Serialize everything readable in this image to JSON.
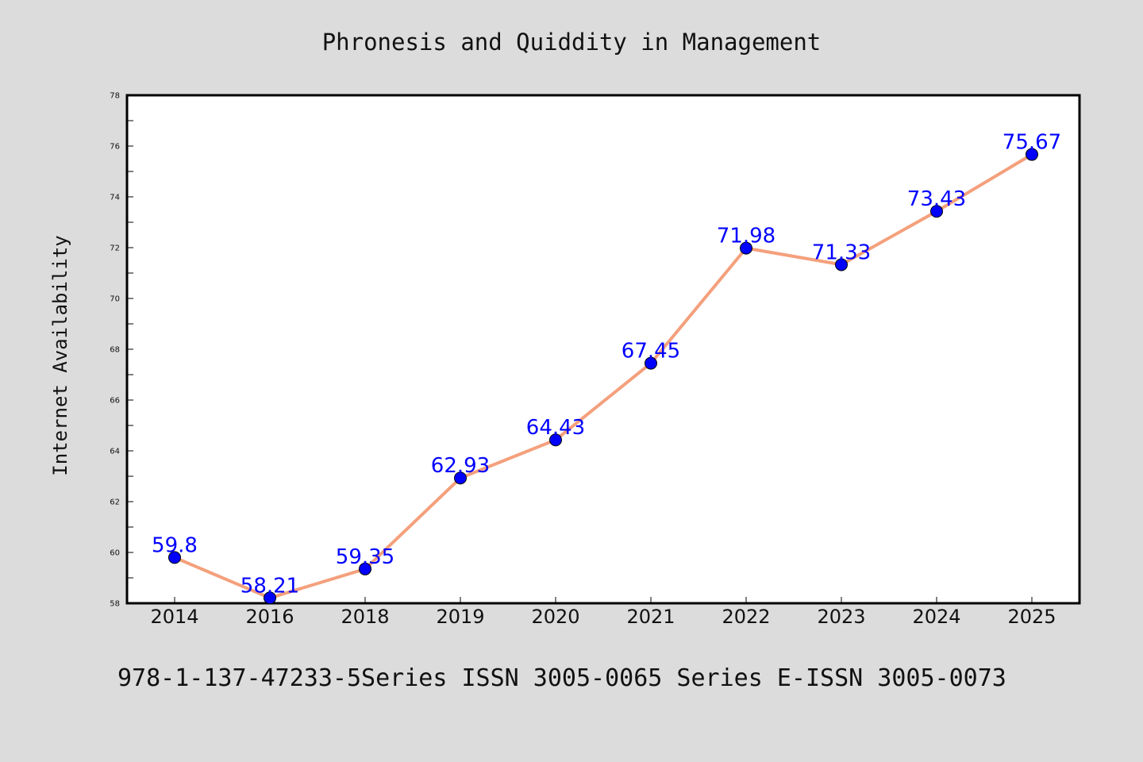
{
  "chart_data": {
    "type": "line",
    "title": "Phronesis and Quiddity in Management",
    "xlabel": "",
    "ylabel": "Internet Availability",
    "categories": [
      "2014",
      "2016",
      "2018",
      "2019",
      "2020",
      "2021",
      "2022",
      "2023",
      "2024",
      "2025"
    ],
    "values": [
      59.8,
      58.21,
      59.35,
      62.93,
      64.43,
      67.45,
      71.98,
      71.33,
      73.43,
      75.67
    ],
    "data_labels": [
      "59.8",
      "58.21",
      "59.35",
      "62.93",
      "64.43",
      "67.45",
      "71.98",
      "71.33",
      "73.43",
      "75.67"
    ],
    "ylim": [
      58,
      78
    ],
    "yticks": [
      "58",
      "60",
      "62",
      "64",
      "66",
      "68",
      "70",
      "72",
      "74",
      "76",
      "78"
    ],
    "grid": false,
    "legend": "none",
    "colors": {
      "background": "#dcdcdc",
      "plot_background": "#ffffff",
      "line": "#f4a07c",
      "marker": "#0000ff",
      "data_label": "#0000ff"
    }
  },
  "footer": "978-1-137-47233-5Series ISSN 3005-0065 Series E-ISSN 3005-0073"
}
